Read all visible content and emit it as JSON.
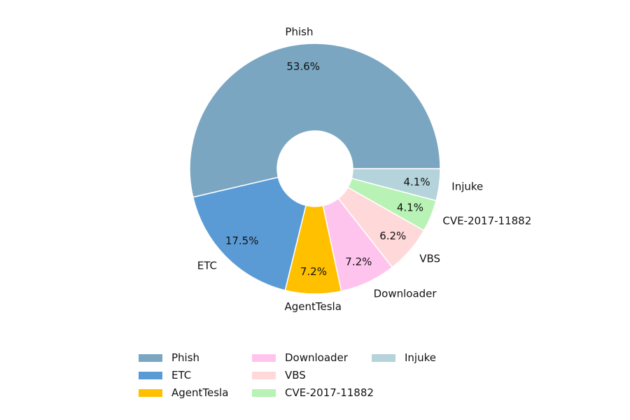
{
  "chart_data": {
    "type": "pie",
    "title": "",
    "donut": true,
    "legend_position": "bottom",
    "slices": [
      {
        "label": "Phish",
        "value": 53.6,
        "display": "53.6%",
        "color": "#7aa6c2"
      },
      {
        "label": "ETC",
        "value": 17.5,
        "display": "17.5%",
        "color": "#5b9bd5"
      },
      {
        "label": "AgentTesla",
        "value": 7.2,
        "display": "7.2%",
        "color": "#ffc000"
      },
      {
        "label": "Downloader",
        "value": 7.2,
        "display": "7.2%",
        "color": "#ffc4ee"
      },
      {
        "label": "VBS",
        "value": 6.2,
        "display": "6.2%",
        "color": "#ffd9d9"
      },
      {
        "label": "CVE-2017-11882",
        "value": 4.1,
        "display": "4.1%",
        "color": "#b8f2b4"
      },
      {
        "label": "Injuke",
        "value": 4.1,
        "display": "4.1%",
        "color": "#b4d3da"
      }
    ]
  }
}
